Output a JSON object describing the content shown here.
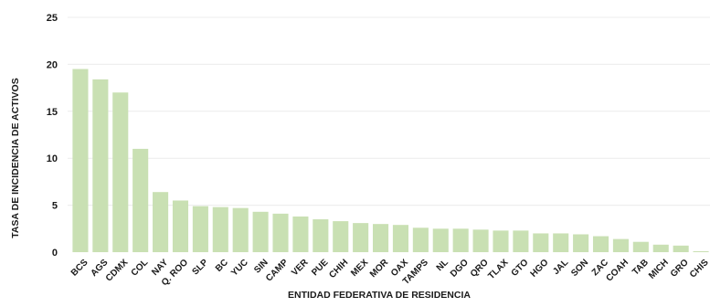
{
  "chart_data": {
    "type": "bar",
    "title": "",
    "xlabel": "ENTIDAD FEDERATIVA DE RESIDENCIA",
    "ylabel": "TASA DE INCIDENCIA DE ACTIVOS",
    "ylim": [
      0,
      25
    ],
    "yticks": [
      0,
      5,
      10,
      15,
      20,
      25
    ],
    "grid": "horizontal",
    "bar_color": "#c9e0b3",
    "categories": [
      "BCS",
      "AGS",
      "CDMX",
      "COL",
      "NAY",
      "Q. ROO",
      "SLP",
      "BC",
      "YUC",
      "SIN",
      "CAMP",
      "VER",
      "PUE",
      "CHIH",
      "MEX",
      "MOR",
      "OAX",
      "TAMPS",
      "NL",
      "DGO",
      "QRO",
      "TLAX",
      "GTO",
      "HGO",
      "JAL",
      "SON",
      "ZAC",
      "COAH",
      "TAB",
      "MICH",
      "GRO",
      "CHIS"
    ],
    "values": [
      19.5,
      18.4,
      17.0,
      11.0,
      6.4,
      5.5,
      4.9,
      4.8,
      4.7,
      4.3,
      4.1,
      3.8,
      3.5,
      3.3,
      3.1,
      3.0,
      2.9,
      2.6,
      2.5,
      2.5,
      2.4,
      2.3,
      2.3,
      2.0,
      2.0,
      1.9,
      1.7,
      1.4,
      1.1,
      0.8,
      0.7,
      0.1
    ]
  }
}
